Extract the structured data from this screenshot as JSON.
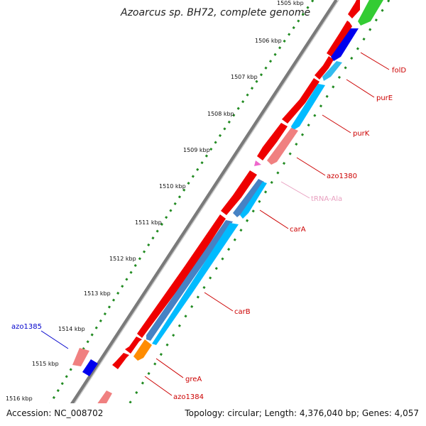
{
  "title": "Azoarcus sp. BH72, complete genome",
  "footer": {
    "accession": "Accession: NC_008702",
    "stats": "Topology: circular; Length: 4,376,040 bp; Genes: 4,057"
  },
  "colors": {
    "backbone": "#8a8a8a",
    "forward_gene": "#ff0000",
    "tick_dots": "#228b22",
    "label_red": "#cc0000",
    "label_blue": "#0000cc",
    "label_pink": "#e8a0c0"
  },
  "kbp_labels": [
    "1505 kbp",
    "1506 kbp",
    "1507 kbp",
    "1508 kbp",
    "1509 kbp",
    "1510 kbp",
    "1511 kbp",
    "1512 kbp",
    "1513 kbp",
    "1514 kbp",
    "1515 kbp",
    "1516 kbp"
  ],
  "gene_labels": {
    "folD": "folD",
    "purE": "purE",
    "purK": "purK",
    "azo1380": "azo1380",
    "tRNA_Ala": "tRNA-Ala",
    "carA": "carA",
    "carB": "carB",
    "greA": "greA",
    "azo1384": "azo1384",
    "azo1385": "azo1385"
  }
}
